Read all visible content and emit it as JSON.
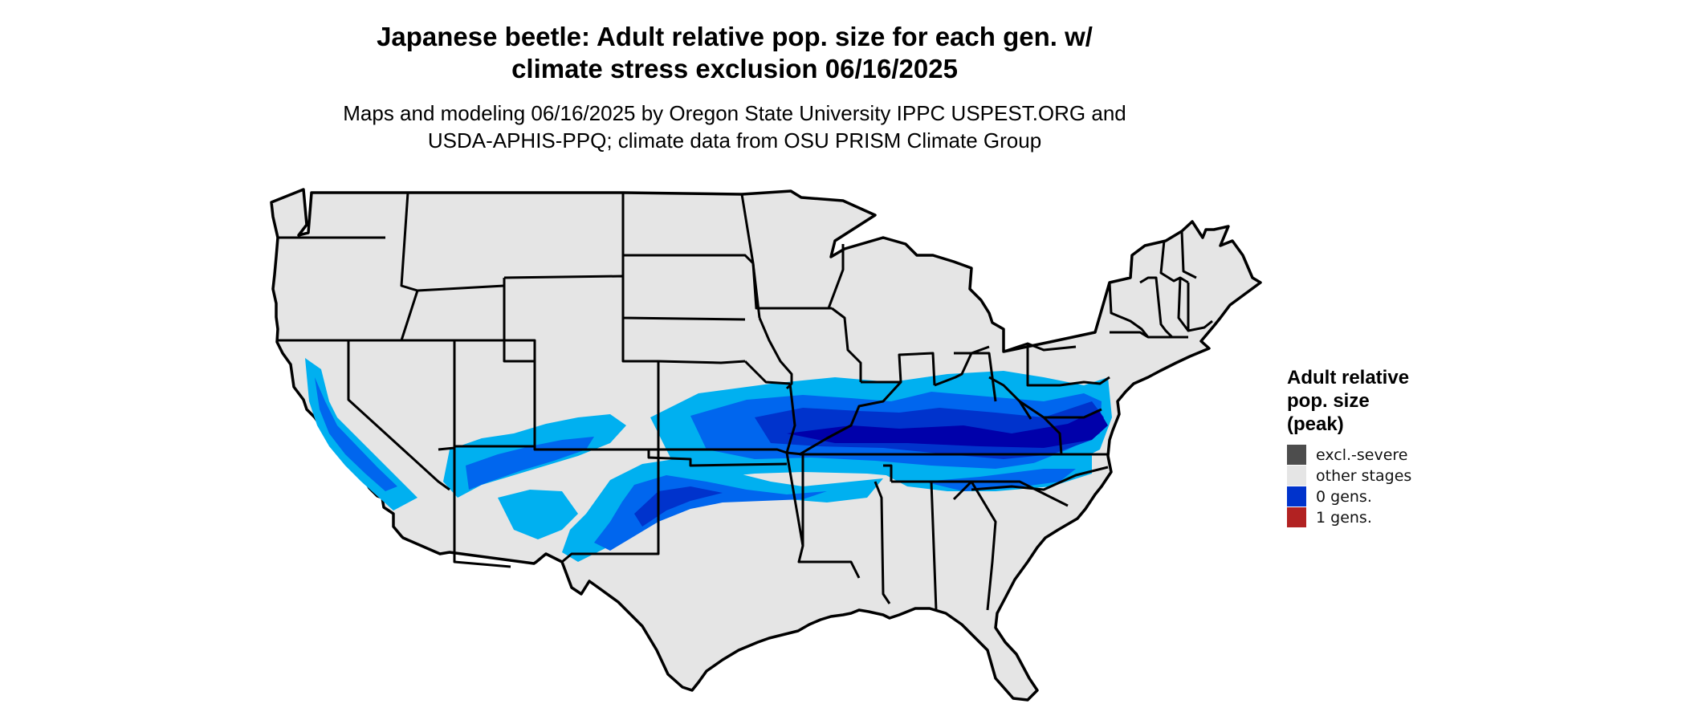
{
  "title": "Japanese beetle: Adult relative pop. size for each gen. w/ climate stress exclusion 06/16/2025",
  "title_lines": [
    "Japanese beetle: Adult relative pop. size for each gen. w/",
    "climate stress exclusion 06/16/2025"
  ],
  "subtitle_lines": [
    "Maps and modeling 06/16/2025 by Oregon State University IPPC USPEST.ORG and",
    "USDA-APHIS-PPQ; climate data from OSU PRISM Climate Group"
  ],
  "legend": {
    "title_lines": [
      "Adult relative",
      "pop. size",
      "(peak)"
    ],
    "items": [
      {
        "label": "excl.-severe",
        "color": "#4d4d4d"
      },
      {
        "label": "other stages",
        "color": "#e5e5e5"
      },
      {
        "label": "0 gens.",
        "color": "#0033cc"
      },
      {
        "label": "1 gens.",
        "color": "#b22222"
      }
    ]
  },
  "map": {
    "region": "contiguous-united-states",
    "land_color": "#e5e5e5",
    "border_color": "#000000",
    "pop_colors": [
      "#00b0f0",
      "#0066ee",
      "#0033cc",
      "#0000aa"
    ]
  }
}
